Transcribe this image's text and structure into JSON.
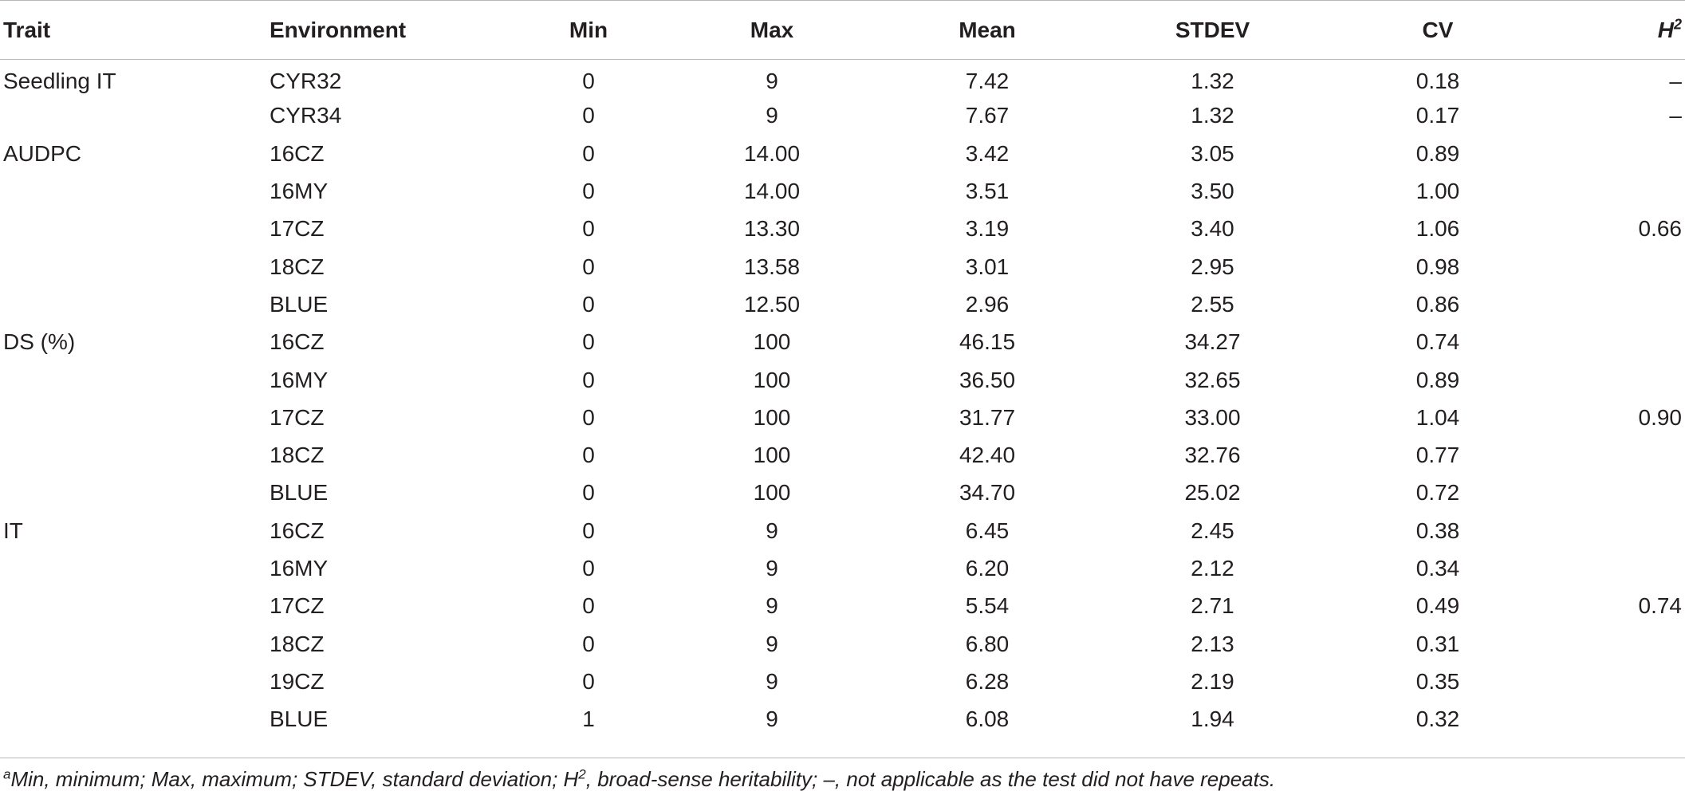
{
  "table": {
    "headers": {
      "trait": "Trait",
      "environment": "Environment",
      "min": "Min",
      "max": "Max",
      "mean": "Mean",
      "stdev": "STDEV",
      "cv": "CV",
      "h2_letter": "H",
      "h2_sup": "2"
    },
    "rows": [
      {
        "trait": "Seedling IT",
        "environment": "CYR32",
        "min": "0",
        "max": "9",
        "mean": "7.42",
        "stdev": "1.32",
        "cv": "0.18",
        "h2": "–"
      },
      {
        "trait": "",
        "environment": "CYR34",
        "min": "0",
        "max": "9",
        "mean": "7.67",
        "stdev": "1.32",
        "cv": "0.17",
        "h2": "–"
      },
      {
        "trait": "AUDPC",
        "environment": "16CZ",
        "min": "0",
        "max": "14.00",
        "mean": "3.42",
        "stdev": "3.05",
        "cv": "0.89",
        "h2": ""
      },
      {
        "trait": "",
        "environment": "16MY",
        "min": "0",
        "max": "14.00",
        "mean": "3.51",
        "stdev": "3.50",
        "cv": "1.00",
        "h2": ""
      },
      {
        "trait": "",
        "environment": "17CZ",
        "min": "0",
        "max": "13.30",
        "mean": "3.19",
        "stdev": "3.40",
        "cv": "1.06",
        "h2": "0.66"
      },
      {
        "trait": "",
        "environment": "18CZ",
        "min": "0",
        "max": "13.58",
        "mean": "3.01",
        "stdev": "2.95",
        "cv": "0.98",
        "h2": ""
      },
      {
        "trait": "",
        "environment": "BLUE",
        "min": "0",
        "max": "12.50",
        "mean": "2.96",
        "stdev": "2.55",
        "cv": "0.86",
        "h2": ""
      },
      {
        "trait": "DS (%)",
        "environment": "16CZ",
        "min": "0",
        "max": "100",
        "mean": "46.15",
        "stdev": "34.27",
        "cv": "0.74",
        "h2": ""
      },
      {
        "trait": "",
        "environment": "16MY",
        "min": "0",
        "max": "100",
        "mean": "36.50",
        "stdev": "32.65",
        "cv": "0.89",
        "h2": ""
      },
      {
        "trait": "",
        "environment": "17CZ",
        "min": "0",
        "max": "100",
        "mean": "31.77",
        "stdev": "33.00",
        "cv": "1.04",
        "h2": "0.90"
      },
      {
        "trait": "",
        "environment": "18CZ",
        "min": "0",
        "max": "100",
        "mean": "42.40",
        "stdev": "32.76",
        "cv": "0.77",
        "h2": ""
      },
      {
        "trait": "",
        "environment": "BLUE",
        "min": "0",
        "max": "100",
        "mean": "34.70",
        "stdev": "25.02",
        "cv": "0.72",
        "h2": ""
      },
      {
        "trait": "IT",
        "environment": "16CZ",
        "min": "0",
        "max": "9",
        "mean": "6.45",
        "stdev": "2.45",
        "cv": "0.38",
        "h2": ""
      },
      {
        "trait": "",
        "environment": "16MY",
        "min": "0",
        "max": "9",
        "mean": "6.20",
        "stdev": "2.12",
        "cv": "0.34",
        "h2": ""
      },
      {
        "trait": "",
        "environment": "17CZ",
        "min": "0",
        "max": "9",
        "mean": "5.54",
        "stdev": "2.71",
        "cv": "0.49",
        "h2": "0.74"
      },
      {
        "trait": "",
        "environment": "18CZ",
        "min": "0",
        "max": "9",
        "mean": "6.80",
        "stdev": "2.13",
        "cv": "0.31",
        "h2": ""
      },
      {
        "trait": "",
        "environment": "19CZ",
        "min": "0",
        "max": "9",
        "mean": "6.28",
        "stdev": "2.19",
        "cv": "0.35",
        "h2": ""
      },
      {
        "trait": "",
        "environment": "BLUE",
        "min": "1",
        "max": "9",
        "mean": "6.08",
        "stdev": "1.94",
        "cv": "0.32",
        "h2": ""
      }
    ]
  },
  "footnote": {
    "marker": "a",
    "part1": "Min, minimum; Max, maximum; STDEV, standard deviation; H",
    "sup": "2",
    "part2": ", broad-sense heritability; –, not applicable as the test did not have repeats."
  }
}
